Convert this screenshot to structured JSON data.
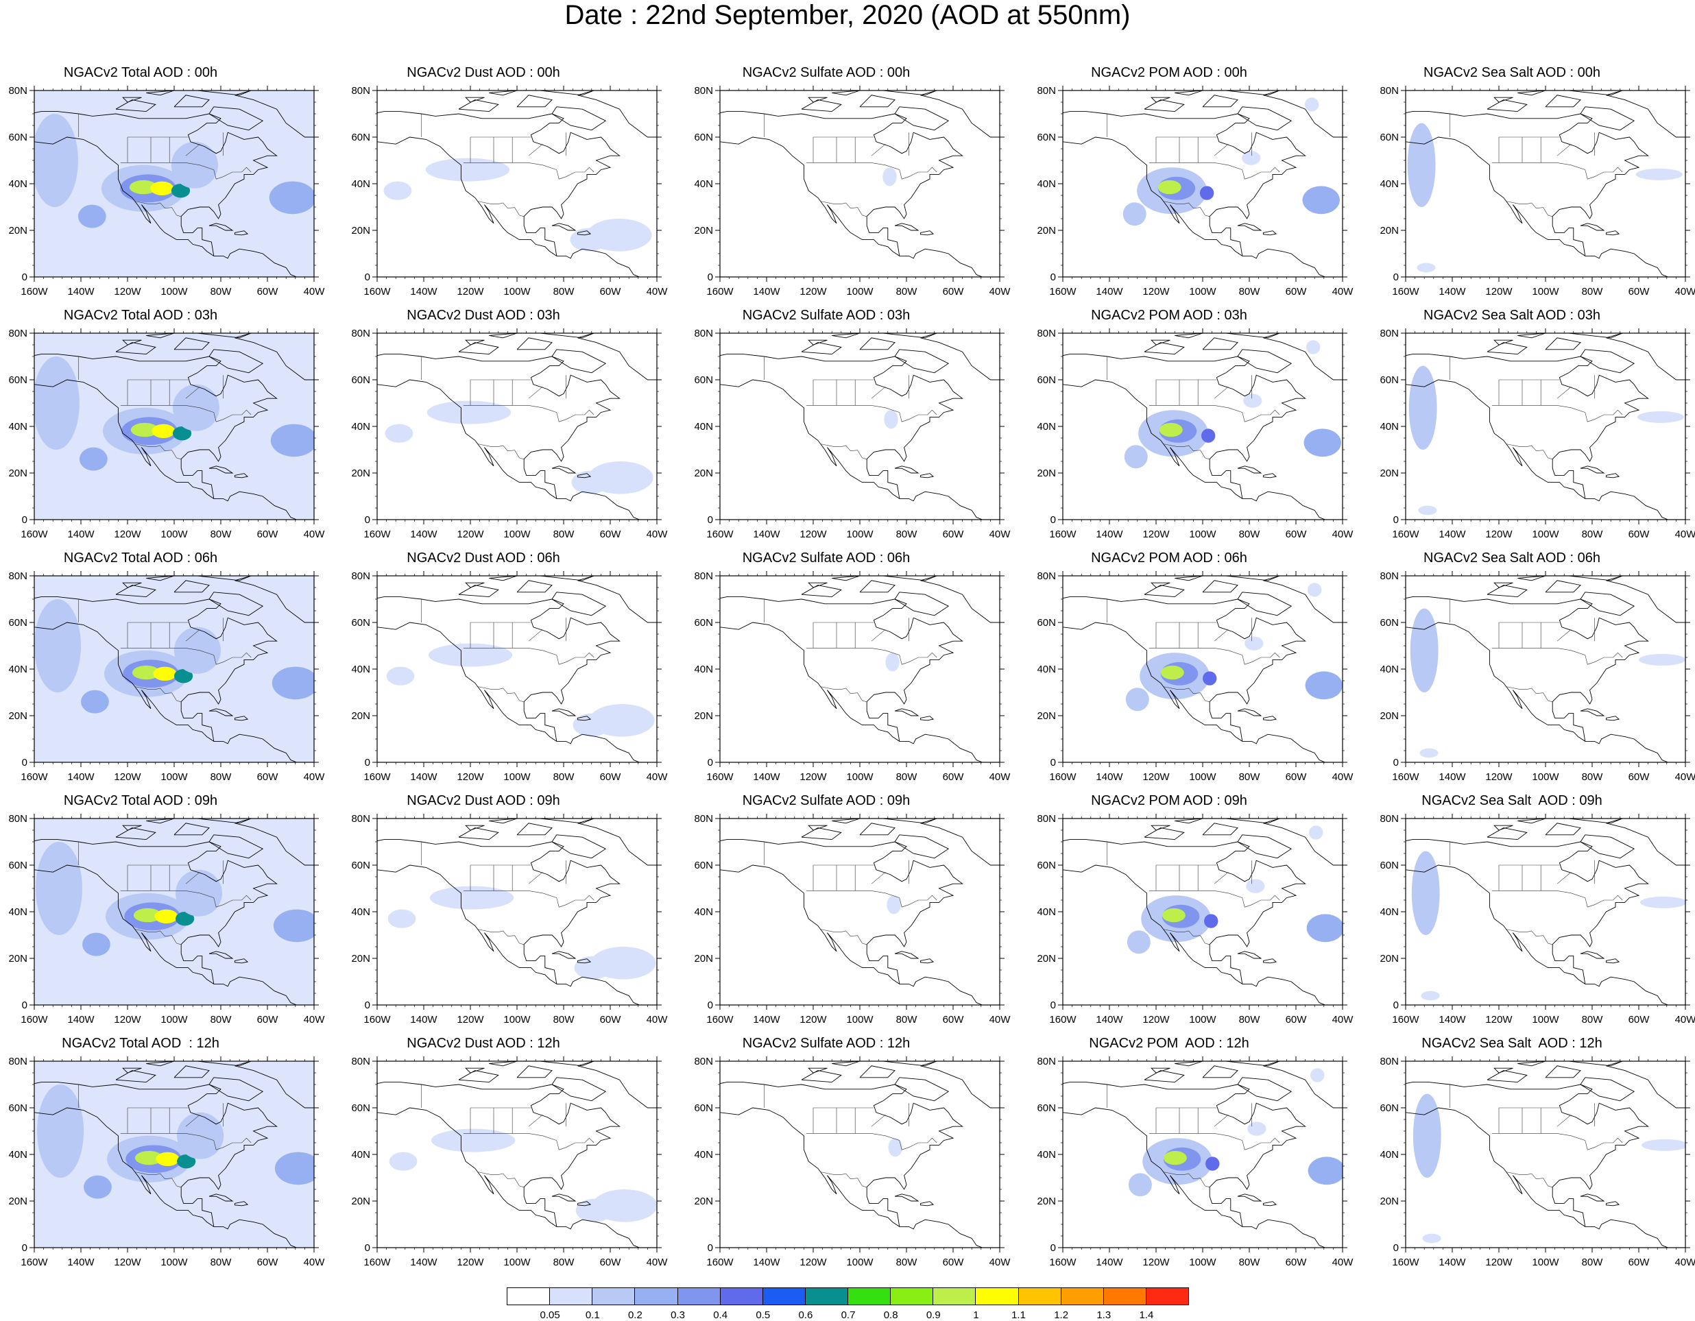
{
  "title": "Date : 22nd  September, 2020 (AOD at 550nm)",
  "panel_titles": [
    [
      "NGACv2 Total AOD : 00h",
      "NGACv2 Dust AOD : 00h",
      "NGACv2 Sulfate AOD : 00h",
      "NGACv2 POM AOD : 00h",
      "NGACv2 Sea Salt AOD : 00h"
    ],
    [
      "NGACv2 Total AOD : 03h",
      "NGACv2 Dust AOD : 03h",
      "NGACv2 Sulfate AOD : 03h",
      "NGACv2 POM AOD : 03h",
      "NGACv2 Sea Salt AOD : 03h"
    ],
    [
      "NGACv2 Total AOD : 06h",
      "NGACv2 Dust AOD : 06h",
      "NGACv2 Sulfate AOD : 06h",
      "NGACv2 POM AOD : 06h",
      "NGACv2 Sea Salt AOD : 06h"
    ],
    [
      "NGACv2 Total AOD : 09h",
      "NGACv2 Dust AOD : 09h",
      "NGACv2 Sulfate AOD : 09h",
      "NGACv2 POM AOD : 09h",
      "NGACv2 Sea Salt  AOD : 09h"
    ],
    [
      "NGACv2 Total AOD  : 12h",
      "NGACv2 Dust AOD : 12h",
      "NGACv2 Sulfate AOD : 12h",
      "NGACv2 POM  AOD : 12h",
      "NGACv2 Sea Salt  AOD : 12h"
    ]
  ],
  "lon_labels": [
    "160W",
    "140W",
    "120W",
    "100W",
    "80W",
    "60W",
    "40W"
  ],
  "lat_labels": [
    "80N",
    "60N",
    "40N",
    "20N",
    "0"
  ],
  "colorbar": {
    "labels": [
      "0.05",
      "0.1",
      "0.2",
      "0.3",
      "0.4",
      "0.5",
      "0.6",
      "0.7",
      "0.8",
      "0.9",
      "1",
      "1.1",
      "1.2",
      "1.3",
      "1.4"
    ],
    "colors": [
      "#ffffff",
      "#d7e1fb",
      "#b8c9f6",
      "#97b0f2",
      "#7f95ee",
      "#5f6bea",
      "#1b5cf2",
      "#089090",
      "#34e010",
      "#88ee14",
      "#bdee4a",
      "#fefe00",
      "#ffc300",
      "#ff9e00",
      "#ff7800",
      "#ff2a12"
    ]
  }
}
